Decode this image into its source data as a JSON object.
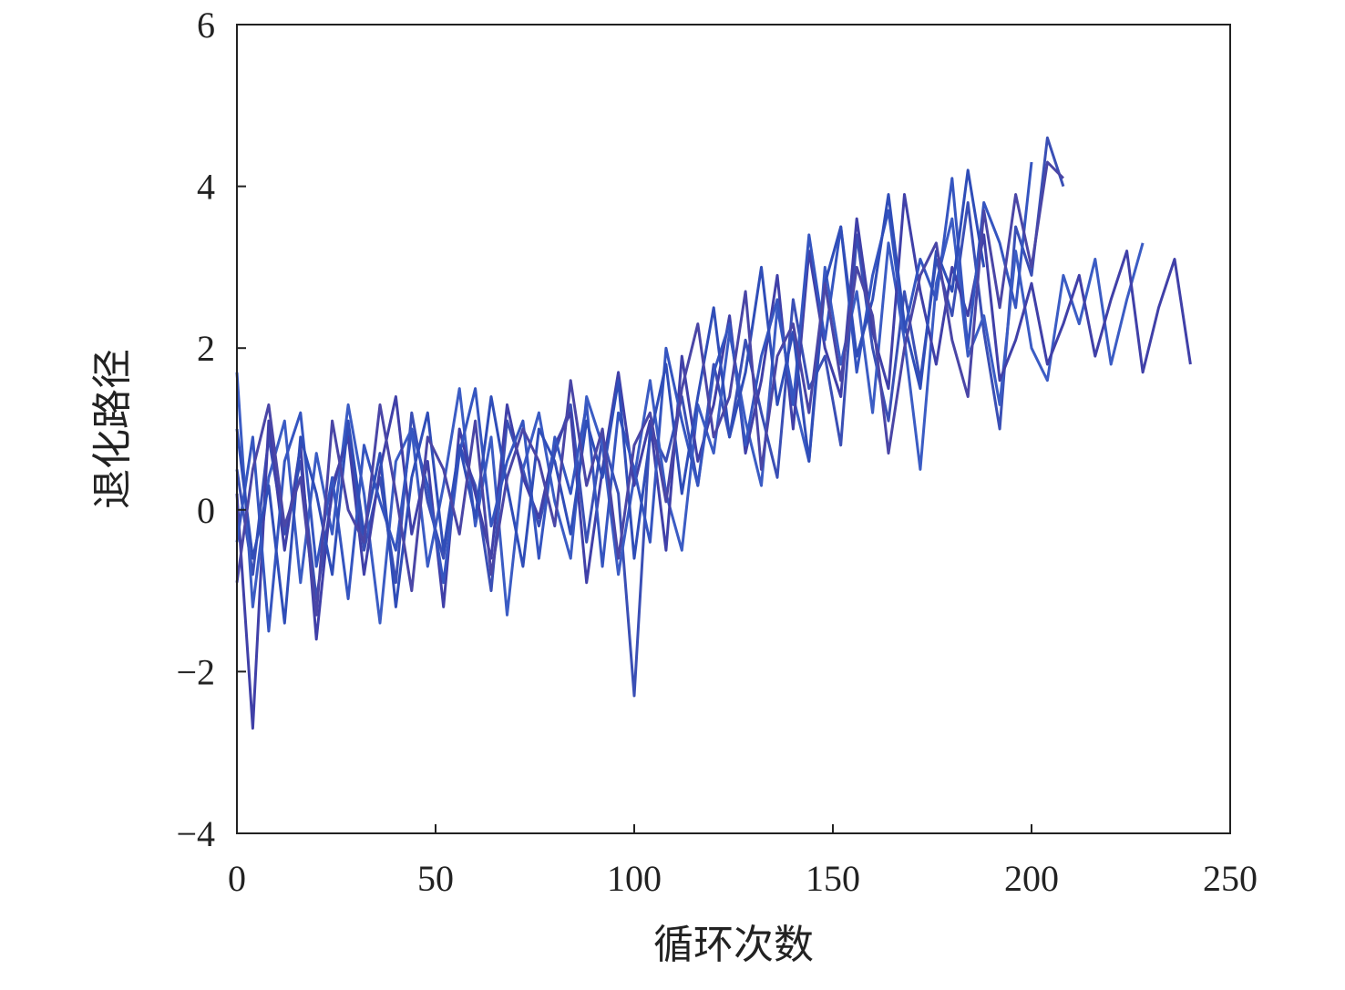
{
  "chart_data": {
    "type": "line",
    "x_label": "循环次数",
    "y_label": "退化路径",
    "xlim": [
      0,
      250
    ],
    "xticks": [
      0,
      50,
      100,
      150,
      200,
      250
    ],
    "ylim": [
      -4,
      6
    ],
    "yticks": [
      {
        "value": -4,
        "label": "−4"
      },
      {
        "value": -2,
        "label": "−2"
      },
      0,
      2,
      4,
      6
    ],
    "x": [
      0,
      4,
      8,
      12,
      16,
      20,
      24,
      28,
      32,
      36,
      40,
      44,
      48,
      52,
      56,
      60,
      64,
      68,
      72,
      76,
      80,
      84,
      88,
      92,
      96,
      100,
      104,
      108,
      112,
      116,
      120,
      124,
      128,
      132,
      136,
      140,
      144,
      148,
      152,
      156,
      160,
      164,
      168,
      172,
      176,
      180,
      184,
      188,
      192,
      196,
      200,
      204,
      208,
      212,
      216,
      220,
      224,
      228,
      232,
      236,
      240
    ],
    "series": [
      {
        "color": "#3a4fb5",
        "values": [
          0.5,
          -0.8,
          0.9,
          -0.3,
          0.6,
          -1.1,
          0.2,
          1.0,
          -0.5,
          0.4,
          -0.9,
          1.2,
          0.1,
          -0.6,
          0.8,
          0.3,
          -1.0,
          1.1,
          0.5,
          -0.2,
          0.7,
          1.3,
          -0.4,
          0.9,
          0.2,
          -2.3,
          1.0,
          0.6,
          1.4,
          0.3,
          1.8,
          0.9,
          2.1,
          1.2,
          0.4,
          2.6,
          1.5,
          1.9,
          0.8,
          3.4,
          2.0,
          1.1,
          2.7,
          1.6,
          3.1,
          2.4,
          3.8,
          2.2,
          1.0,
          3.5,
          2.9,
          4.6,
          4.0,
          null,
          null,
          null,
          null,
          null,
          null,
          null,
          null
        ]
      },
      {
        "color": "#3b5cc4",
        "values": [
          1.7,
          -1.2,
          0.4,
          1.1,
          -0.9,
          0.7,
          -0.3,
          1.3,
          0.2,
          -1.4,
          0.6,
          1.0,
          -0.7,
          0.3,
          1.5,
          -0.2,
          0.9,
          -1.3,
          0.5,
          1.2,
          0.1,
          -0.6,
          1.4,
          0.8,
          -0.8,
          0.4,
          1.6,
          0.2,
          -0.5,
          1.3,
          0.7,
          2.2,
          1.1,
          0.3,
          2.5,
          1.4,
          0.6,
          3.0,
          1.8,
          2.7,
          1.2,
          3.3,
          2.1,
          0.5,
          2.8,
          3.6,
          1.9,
          2.4,
          1.3,
          3.2,
          2.0,
          1.6,
          2.9,
          2.3,
          3.1,
          1.8,
          2.6,
          3.3,
          null,
          null,
          null
        ]
      },
      {
        "color": "#4040a8",
        "values": [
          0.2,
          -2.7,
          1.1,
          -0.5,
          0.8,
          -1.6,
          0.3,
          0.9,
          -0.8,
          0.5,
          1.4,
          -0.3,
          0.6,
          -1.2,
          1.0,
          0.2,
          -0.6,
          1.3,
          0.4,
          -0.1,
          0.8,
          1.2,
          -0.9,
          0.5,
          1.7,
          0.3,
          1.1,
          -0.5,
          1.9,
          0.6,
          1.3,
          2.4,
          0.7,
          1.6,
          2.9,
          1.0,
          3.2,
          2.0,
          1.4,
          3.6,
          2.2,
          1.5,
          3.9,
          2.7,
          1.8,
          3.0,
          2.4,
          3.4,
          1.6,
          2.1,
          2.8,
          1.8,
          2.3,
          2.9,
          1.9,
          2.6,
          3.2,
          1.7,
          2.5,
          3.1,
          1.8
        ]
      },
      {
        "color": "#3555c0",
        "values": [
          -0.4,
          0.9,
          -1.5,
          0.6,
          1.2,
          -0.7,
          0.4,
          -1.1,
          0.8,
          0.1,
          -0.5,
          1.0,
          0.3,
          -0.9,
          0.7,
          1.5,
          -0.2,
          0.6,
          1.1,
          -0.6,
          0.9,
          0.2,
          1.3,
          -0.7,
          1.2,
          0.5,
          -0.4,
          2.0,
          1.1,
          0.3,
          1.7,
          2.3,
          0.8,
          1.9,
          2.6,
          1.3,
          3.4,
          2.1,
          3.5,
          1.7,
          2.9,
          3.7,
          2.2,
          3.1,
          2.6,
          4.1,
          2.0,
          3.8,
          3.3,
          2.5,
          4.3,
          null,
          null,
          null,
          null,
          null,
          null,
          null,
          null,
          null,
          null
        ]
      },
      {
        "color": "#2f4db8",
        "values": [
          1.0,
          -0.6,
          0.3,
          -1.4,
          0.9,
          0.2,
          -0.8,
          1.1,
          -0.3,
          0.7,
          -1.2,
          0.4,
          1.2,
          -0.5,
          0.8,
          -0.1,
          1.4,
          0.3,
          -0.7,
          1.0,
          0.6,
          -0.3,
          1.1,
          0.4,
          1.6,
          -0.6,
          0.9,
          1.8,
          0.2,
          1.4,
          2.5,
          0.9,
          1.7,
          3.0,
          1.3,
          2.2,
          0.6,
          2.8,
          3.5,
          1.9,
          2.6,
          3.9,
          2.3,
          1.5,
          3.2,
          2.7,
          4.2,
          3.0,
          null,
          null,
          null,
          null,
          null,
          null,
          null,
          null,
          null,
          null,
          null,
          null,
          null
        ]
      },
      {
        "color": "#4a46a6",
        "values": [
          -0.9,
          0.5,
          1.3,
          -0.2,
          0.4,
          -1.3,
          1.1,
          0.0,
          -0.4,
          1.3,
          0.2,
          -1.0,
          0.9,
          0.5,
          -0.3,
          1.1,
          -0.8,
          0.4,
          1.0,
          0.6,
          -0.2,
          1.6,
          0.3,
          1.0,
          -0.6,
          0.8,
          1.2,
          0.1,
          1.5,
          2.3,
          0.9,
          1.4,
          2.7,
          0.5,
          1.9,
          2.3,
          1.2,
          2.8,
          1.6,
          3.0,
          2.4,
          0.7,
          2.0,
          2.9,
          3.3,
          2.1,
          1.4,
          3.7,
          2.5,
          3.9,
          3.0,
          4.3,
          4.1,
          null,
          null,
          null,
          null,
          null,
          null,
          null,
          null
        ]
      }
    ]
  }
}
